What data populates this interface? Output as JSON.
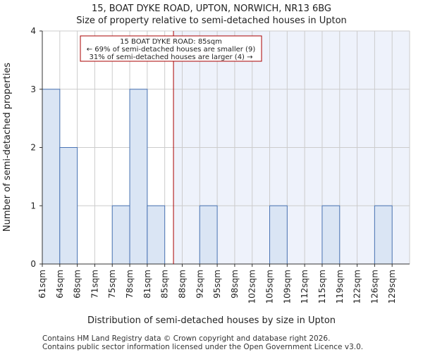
{
  "chart_data": {
    "type": "bar",
    "title": "15, BOAT DYKE ROAD, UPTON, NORWICH, NR13 6BG",
    "subtitle": "Size of property relative to semi-detached houses in Upton",
    "xlabel": "Distribution of semi-detached houses by size in Upton",
    "ylabel": "Number of semi-detached properties",
    "categories": [
      "61sqm",
      "64sqm",
      "68sqm",
      "71sqm",
      "75sqm",
      "78sqm",
      "81sqm",
      "85sqm",
      "88sqm",
      "92sqm",
      "95sqm",
      "98sqm",
      "102sqm",
      "105sqm",
      "109sqm",
      "112sqm",
      "115sqm",
      "119sqm",
      "122sqm",
      "126sqm",
      "129sqm"
    ],
    "values": [
      3,
      2,
      0,
      0,
      1,
      3,
      1,
      0,
      0,
      1,
      0,
      0,
      0,
      1,
      0,
      0,
      1,
      0,
      0,
      1,
      0
    ],
    "ylim": [
      0,
      4
    ],
    "yticks": [
      0,
      1,
      2,
      3,
      4
    ],
    "grid": true,
    "marker": {
      "category_index": 7,
      "label_line1": "15 BOAT DYKE ROAD: 85sqm",
      "label_line2": "← 69% of semi-detached houses are smaller (9)",
      "label_line3": "31% of semi-detached houses are larger (4) →",
      "color": "#aa0000"
    },
    "colors": {
      "bar_fill": "#dae5f4",
      "bar_stroke": "#4a74b4",
      "highlight_fill": "#eef2fb",
      "grid": "#cccccc"
    }
  },
  "footer": {
    "line1": "Contains HM Land Registry data © Crown copyright and database right 2026.",
    "line2": "Contains public sector information licensed under the Open Government Licence v3.0."
  }
}
